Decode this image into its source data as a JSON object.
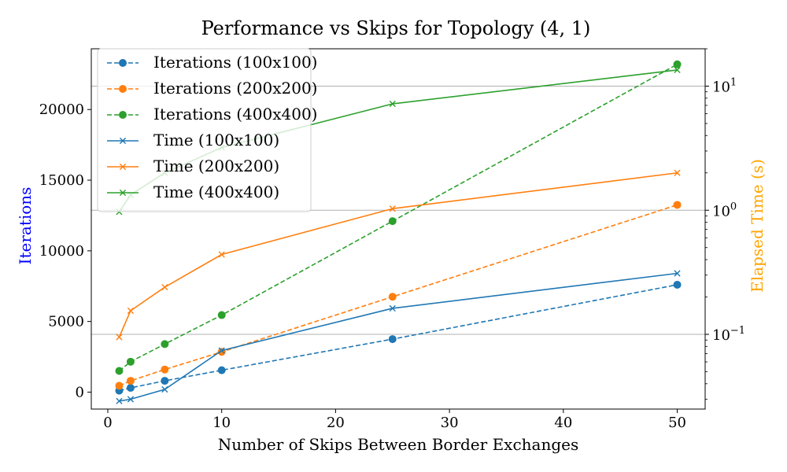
{
  "chart_data": {
    "type": "line",
    "title": "Performance vs Skips for Topology (4, 1)",
    "xlabel": "Number of Skips Between Border Exchanges",
    "ylabel_left": "Iterations",
    "ylabel_right": "Elapsed Time (s)",
    "ylabel_left_color": "#0000ff",
    "ylabel_right_color": "#ffa500",
    "x": [
      1,
      2,
      5,
      10,
      25,
      50
    ],
    "xlim": [
      -1.45,
      52.45
    ],
    "ylim_left": [
      -1200,
      24300
    ],
    "ylim_right": [
      0.025,
      20
    ],
    "yscale_right": "log",
    "x_ticks": [
      0,
      10,
      20,
      30,
      40,
      50
    ],
    "x_tick_labels": [
      "0",
      "10",
      "20",
      "30",
      "40",
      "50"
    ],
    "y_left_ticks": [
      0,
      5000,
      10000,
      15000,
      20000
    ],
    "y_left_tick_labels": [
      "0",
      "5000",
      "10000",
      "15000",
      "20000"
    ],
    "y_right_ticks": [
      0.1,
      1,
      10
    ],
    "y_right_tick_labels": [
      "10",
      "10",
      "10"
    ],
    "y_right_tick_exponents": [
      "−1",
      "0",
      "1"
    ],
    "right_grid": true,
    "legend_position": "top-left",
    "series": [
      {
        "name": "Iterations (100x100)",
        "axis": "left",
        "marker": "circle",
        "dash": true,
        "color": "#1f77b4",
        "values": [
          100,
          300,
          800,
          1550,
          3750,
          7600
        ]
      },
      {
        "name": "Iterations (200x200)",
        "axis": "left",
        "marker": "circle",
        "dash": true,
        "color": "#ff7f0e",
        "values": [
          450,
          800,
          1600,
          2850,
          6750,
          13250
        ]
      },
      {
        "name": "Iterations (400x400)",
        "axis": "left",
        "marker": "circle",
        "dash": true,
        "color": "#2ca02c",
        "values": [
          1500,
          2150,
          3400,
          5450,
          12100,
          23200
        ]
      },
      {
        "name": "Time (100x100)",
        "axis": "right",
        "marker": "x",
        "dash": false,
        "color": "#1f77b4",
        "values": [
          0.029,
          0.03,
          0.036,
          0.074,
          0.162,
          0.31
        ]
      },
      {
        "name": "Time (200x200)",
        "axis": "right",
        "marker": "x",
        "dash": false,
        "color": "#ff7f0e",
        "values": [
          0.095,
          0.155,
          0.24,
          0.44,
          1.03,
          2.0
        ]
      },
      {
        "name": "Time (400x400)",
        "axis": "right",
        "marker": "x",
        "dash": false,
        "color": "#2ca02c",
        "values": [
          0.97,
          1.33,
          2.0,
          3.2,
          7.2,
          13.5
        ]
      }
    ]
  }
}
